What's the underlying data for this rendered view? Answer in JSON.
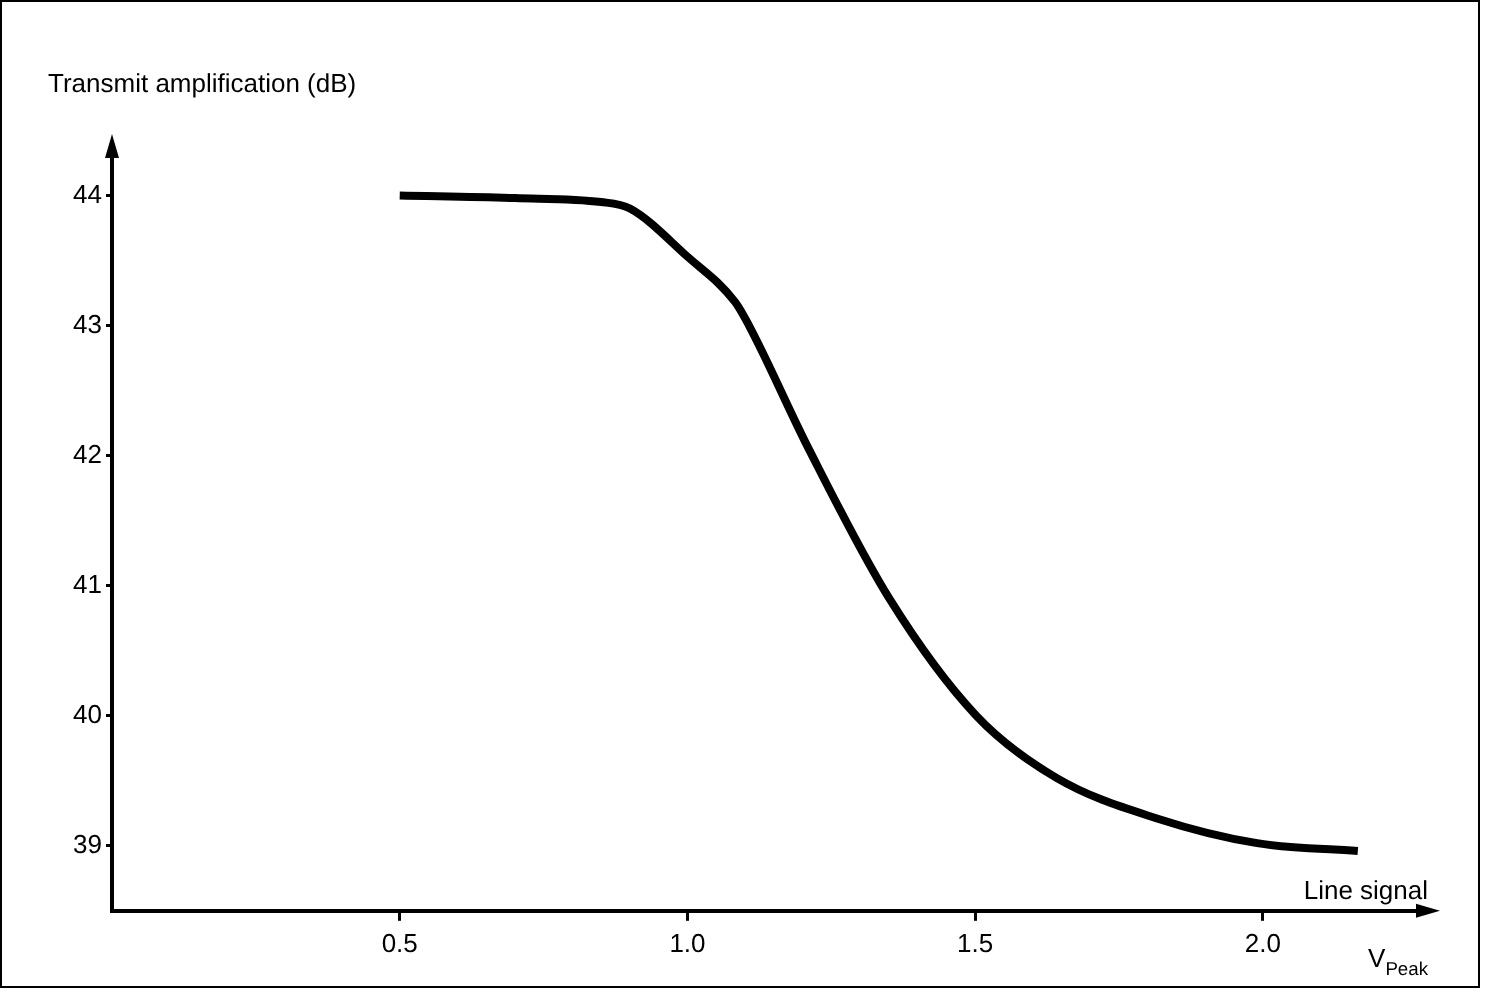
{
  "chart_data": {
    "type": "line",
    "ylabel": "Transmit amplification (dB)",
    "xlabel": "Line signal",
    "annotations": [
      "V$_{Peak}$"
    ],
    "xlim": [
      0,
      2.28
    ],
    "xticks": [
      0.5,
      {
        "value": 1,
        "label": "1.0"
      },
      1.5,
      {
        "value": 2,
        "label": "2.0"
      }
    ],
    "ylim": [
      38.5,
      44.35
    ],
    "yticks": [
      39,
      40,
      41,
      42,
      43,
      44
    ],
    "grid": false,
    "legend": false,
    "marker": "none",
    "line_style": "solid",
    "series": [
      {
        "color": "#000000",
        "x": [
          0.5,
          0.7,
          0.85,
          0.9,
          1.0,
          1.083,
          1.107,
          1.211,
          1.351,
          1.502,
          1.642,
          1.816,
          1.99,
          2.165
        ],
        "values": [
          44.0,
          43.98,
          43.95,
          43.9,
          43.53,
          43.18,
          43.0,
          42.05,
          40.9,
          40.0,
          39.52,
          39.21,
          39.02,
          38.96
        ]
      }
    ]
  }
}
